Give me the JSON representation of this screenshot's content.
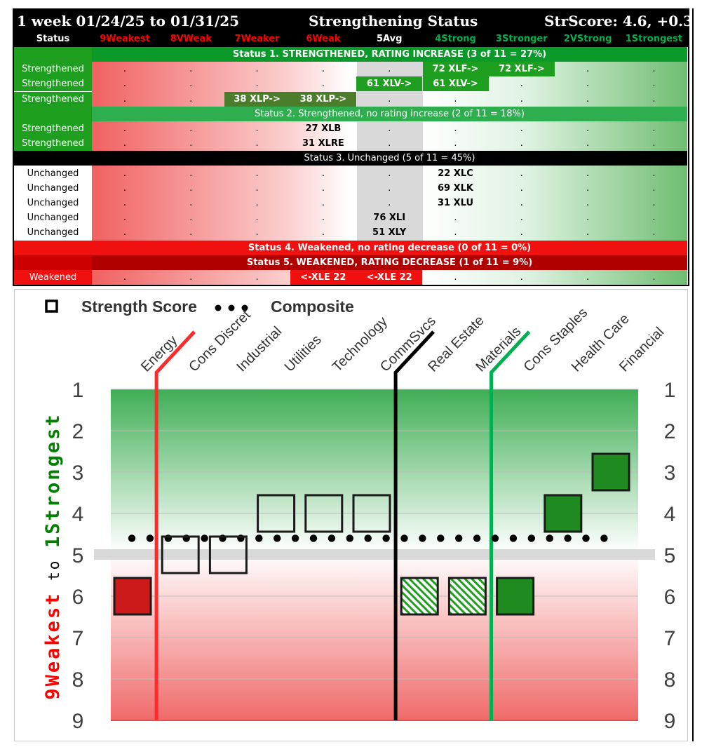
{
  "table": {
    "title": "1 week 01/24/25 to 01/31/25",
    "heading": "Strengthening Status",
    "strscore": "StrScore: 4.6, +0.3",
    "columns": [
      "Status",
      "9Weakest",
      "8VWeak",
      "7Weaker",
      "6Weak",
      "5Avg",
      "4Strong",
      "3Stronger",
      "2VStrong",
      "1Strongest"
    ],
    "column_colors": [
      "#ffffff",
      "#ff0000",
      "#ff0000",
      "#ff0000",
      "#ff0000",
      "#ffffff",
      "#00b050",
      "#00b050",
      "#00b050",
      "#00b050"
    ],
    "banners": [
      "Status 1. STRENGTHENED, RATING INCREASE (3 of 11 = 27%)",
      "Status 2. Strengthened, no rating increase (2 of 11 = 18%)",
      "Status 3. Unchanged (5 of 11 = 45%)",
      "Status 4. Weakened, no rating decrease (0 of 11 = 0%)",
      "Status 5. WEAKENED, RATING DECREASE (1 of 11 = 9%)"
    ],
    "dot": ".",
    "rows": [
      {
        "status": "Strengthened",
        "cells": [
          {
            "col": 6,
            "text": "72 XLF->",
            "style": "green"
          },
          {
            "col": 7,
            "text": "72 XLF->",
            "style": "green"
          }
        ]
      },
      {
        "status": "Strengthened",
        "cells": [
          {
            "col": 5,
            "text": "61 XLV->",
            "style": "green"
          },
          {
            "col": 6,
            "text": "61 XLV->",
            "style": "green"
          }
        ]
      },
      {
        "status": "Strengthened",
        "cells": [
          {
            "col": 3,
            "text": "38 XLP->",
            "style": "olive"
          },
          {
            "col": 4,
            "text": "38 XLP->",
            "style": "olive"
          }
        ]
      },
      {
        "status": "Strengthened",
        "cells": [
          {
            "col": 4,
            "text": "27 XLB",
            "style": "plain"
          }
        ]
      },
      {
        "status": "Strengthened",
        "cells": [
          {
            "col": 4,
            "text": "31 XLRE",
            "style": "plain"
          }
        ]
      },
      {
        "status": "Unchanged",
        "cells": [
          {
            "col": 6,
            "text": "22 XLC",
            "style": "plain"
          }
        ]
      },
      {
        "status": "Unchanged",
        "cells": [
          {
            "col": 6,
            "text": "69 XLK",
            "style": "plain"
          }
        ]
      },
      {
        "status": "Unchanged",
        "cells": [
          {
            "col": 6,
            "text": "31 XLU",
            "style": "plain"
          }
        ]
      },
      {
        "status": "Unchanged",
        "cells": [
          {
            "col": 5,
            "text": "76 XLI",
            "style": "plain"
          }
        ]
      },
      {
        "status": "Unchanged",
        "cells": [
          {
            "col": 5,
            "text": "51 XLY",
            "style": "plain"
          }
        ]
      },
      {
        "status": "Weakened",
        "cells": [
          {
            "col": 4,
            "text": "<-XLE 22",
            "style": "red"
          },
          {
            "col": 5,
            "text": "<-XLE 22",
            "style": "red"
          }
        ]
      }
    ]
  },
  "chart_data": {
    "type": "scatter",
    "legend": {
      "square_label": "Strength Score",
      "dots_label": "Composite"
    },
    "y_axis_label_parts": [
      {
        "text": "9Weakest",
        "color": "#ff0000"
      },
      {
        "text": " to ",
        "color": "#000000"
      },
      {
        "text": "1Strongest",
        "color": "#008000"
      }
    ],
    "y_ticks": [
      "1",
      "2",
      "3",
      "4",
      "5",
      "6",
      "7",
      "8",
      "9"
    ],
    "ylim": [
      1,
      9
    ],
    "y_inverted": true,
    "composite": 4.6,
    "categories": [
      "Energy",
      "Cons Discret",
      "Industrial",
      "Utilities",
      "Technology",
      "CommSvcs",
      "Real Estate",
      "Materials",
      "Cons Staples",
      "Health Care",
      "Financial"
    ],
    "values": [
      6,
      5,
      5,
      4,
      4,
      4,
      6,
      6,
      6,
      4,
      3
    ],
    "styles": [
      "red-fill",
      "hollow",
      "hollow",
      "hollow",
      "hollow",
      "hollow",
      "green-hatch",
      "green-hatch",
      "green-fill",
      "green-fill",
      "green-fill"
    ],
    "group_dividers": [
      {
        "after_index": 0,
        "color": "#ff2a2a"
      },
      {
        "after_index": 5,
        "color": "#000000"
      },
      {
        "after_index": 7,
        "color": "#00b050"
      }
    ],
    "colors": {
      "red_fill": "#cc1a1a",
      "green_fill": "#1f8a1f",
      "hatch": "#1f9f1f",
      "midline": "#d9d9d9"
    }
  }
}
